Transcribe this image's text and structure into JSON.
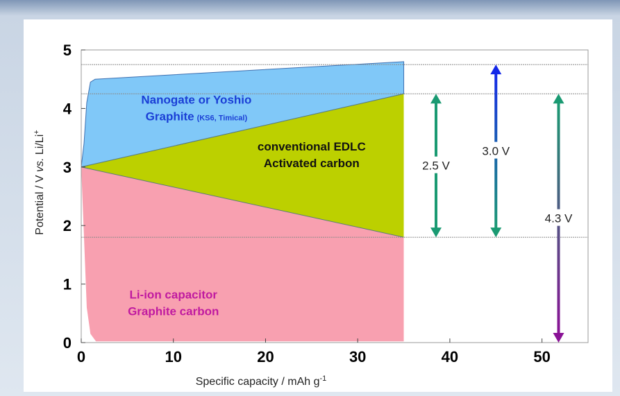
{
  "chart_data": {
    "type": "area",
    "xlabel": "Specific capacity / mAh g",
    "xlabel_sup": "-1",
    "ylabel_pre": "Potential / V ",
    "ylabel_vs": "vs.",
    "ylabel_post": " Li/Li",
    "ylabel_sup": "+",
    "xlim": [
      0,
      55
    ],
    "ylim": [
      0,
      5
    ],
    "x_ticks": [
      0,
      10,
      20,
      30,
      40,
      50
    ],
    "y_ticks": [
      0,
      1,
      2,
      3,
      4,
      5
    ],
    "reference_lines_y": [
      4.75,
      4.25,
      1.8
    ],
    "regions": [
      {
        "name_lines": [
          "Nanogate or Yoshio",
          "Graphite"
        ],
        "name_suffix": "(KS6, Timical)",
        "color": "#80c8f8",
        "text_color": "#1a3fd6",
        "upper": [
          [
            0,
            3.0
          ],
          [
            0.3,
            3.4
          ],
          [
            0.6,
            4.1
          ],
          [
            1.0,
            4.45
          ],
          [
            1.5,
            4.5
          ],
          [
            35,
            4.8
          ]
        ],
        "lower": [
          [
            0,
            3.0
          ],
          [
            35,
            4.25
          ]
        ]
      },
      {
        "name_lines": [
          "conventional EDLC",
          "Activated carbon"
        ],
        "color": "#bcd000",
        "text_color": "#111111",
        "upper": [
          [
            0,
            3.0
          ],
          [
            35,
            4.25
          ]
        ],
        "lower": [
          [
            0,
            3.0
          ],
          [
            35,
            1.8
          ]
        ]
      },
      {
        "name_lines": [
          "Li-ion capacitor",
          "Graphite carbon"
        ],
        "color": "#f8a0b0",
        "text_color": "#c01aa0",
        "upper": [
          [
            0,
            3.0
          ],
          [
            35,
            1.8
          ]
        ],
        "lower": [
          [
            0,
            3.0
          ],
          [
            0.3,
            1.8
          ],
          [
            0.6,
            0.6
          ],
          [
            1.0,
            0.15
          ],
          [
            1.6,
            0.02
          ],
          [
            35,
            0.02
          ]
        ]
      }
    ],
    "annotations": [
      {
        "label": "2.5 V",
        "x": 38.5,
        "y_from": 1.8,
        "y_to": 4.25,
        "color_top": "#1a9a72",
        "color_bottom": "#1a9a72"
      },
      {
        "label": "3.0 V",
        "x": 45.0,
        "y_from": 1.8,
        "y_to": 4.75,
        "color_top": "#1428e8",
        "color_bottom": "#1a9a72"
      },
      {
        "label": "4.3 V",
        "x": 51.8,
        "y_from": 0.0,
        "y_to": 4.25,
        "color_top": "#1a9a72",
        "color_bottom": "#8a1296"
      }
    ]
  }
}
